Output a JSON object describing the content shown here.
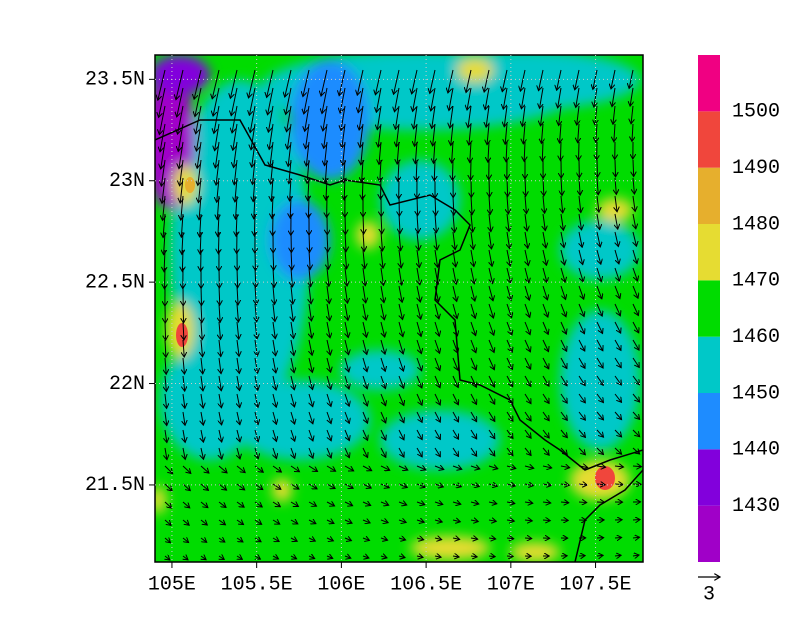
{
  "chart_data": {
    "type": "contour",
    "xlim": [
      104.9,
      107.78
    ],
    "ylim": [
      21.12,
      23.62
    ],
    "xticks": [
      {
        "value": 105,
        "label": "105E"
      },
      {
        "value": 105.5,
        "label": "105.5E"
      },
      {
        "value": 106,
        "label": "106E"
      },
      {
        "value": 106.5,
        "label": "106.5E"
      },
      {
        "value": 107,
        "label": "107E"
      },
      {
        "value": 107.5,
        "label": "107.5E"
      }
    ],
    "yticks": [
      {
        "value": 21.5,
        "label": "21.5N"
      },
      {
        "value": 22,
        "label": "22N"
      },
      {
        "value": 22.5,
        "label": "22.5N"
      },
      {
        "value": 23,
        "label": "23N"
      },
      {
        "value": 23.5,
        "label": "23.5N"
      }
    ],
    "grid": true,
    "colorbar": {
      "levels": [
        1430,
        1440,
        1450,
        1460,
        1470,
        1480,
        1490,
        1500
      ],
      "colors": [
        "#a000c8",
        "#8200dc",
        "#1e8cff",
        "#00c8c8",
        "#00dc00",
        "#e6dc32",
        "#e6af2d",
        "#f0463c",
        "#f00082"
      ]
    },
    "vector_reference": {
      "label": "3"
    }
  }
}
